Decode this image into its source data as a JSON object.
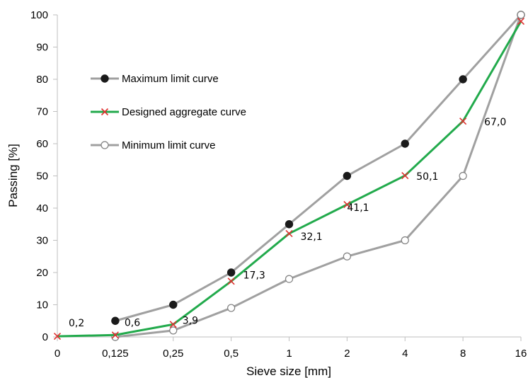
{
  "chart_data": {
    "type": "line",
    "categories": [
      "0",
      "0,125",
      "0,25",
      "0,5",
      "1",
      "2",
      "4",
      "8",
      "16"
    ],
    "xlabel": "Sieve size [mm]",
    "ylabel": "Passing [%]",
    "ylim": [
      0,
      100
    ],
    "yticks": [
      "0",
      "10",
      "20",
      "30",
      "40",
      "50",
      "60",
      "70",
      "80",
      "90",
      "100"
    ],
    "grid": false,
    "legend_position": "upper-left",
    "series": [
      {
        "name": "Maximum limit curve",
        "values": [
          null,
          5,
          10,
          20,
          35,
          50,
          60,
          80,
          100
        ],
        "line_color": "#a0a0a0",
        "marker": "filled-circle",
        "marker_color": "#1a1a1a"
      },
      {
        "name": "Designed aggregate curve",
        "values": [
          0.2,
          0.6,
          3.9,
          17.3,
          32.1,
          41.1,
          50.1,
          67.0,
          98
        ],
        "labels": [
          "0,2",
          "0,6",
          "3,9",
          "17,3",
          "32,1",
          "41,1",
          "50,1",
          "67,0",
          ""
        ],
        "line_color": "#22aa4c",
        "marker": "x",
        "marker_color": "#e03030"
      },
      {
        "name": "Minimum limit curve",
        "values": [
          null,
          0,
          2,
          9,
          18,
          25,
          30,
          50,
          100
        ],
        "line_color": "#a0a0a0",
        "marker": "open-circle",
        "marker_color": "#808080"
      }
    ]
  }
}
